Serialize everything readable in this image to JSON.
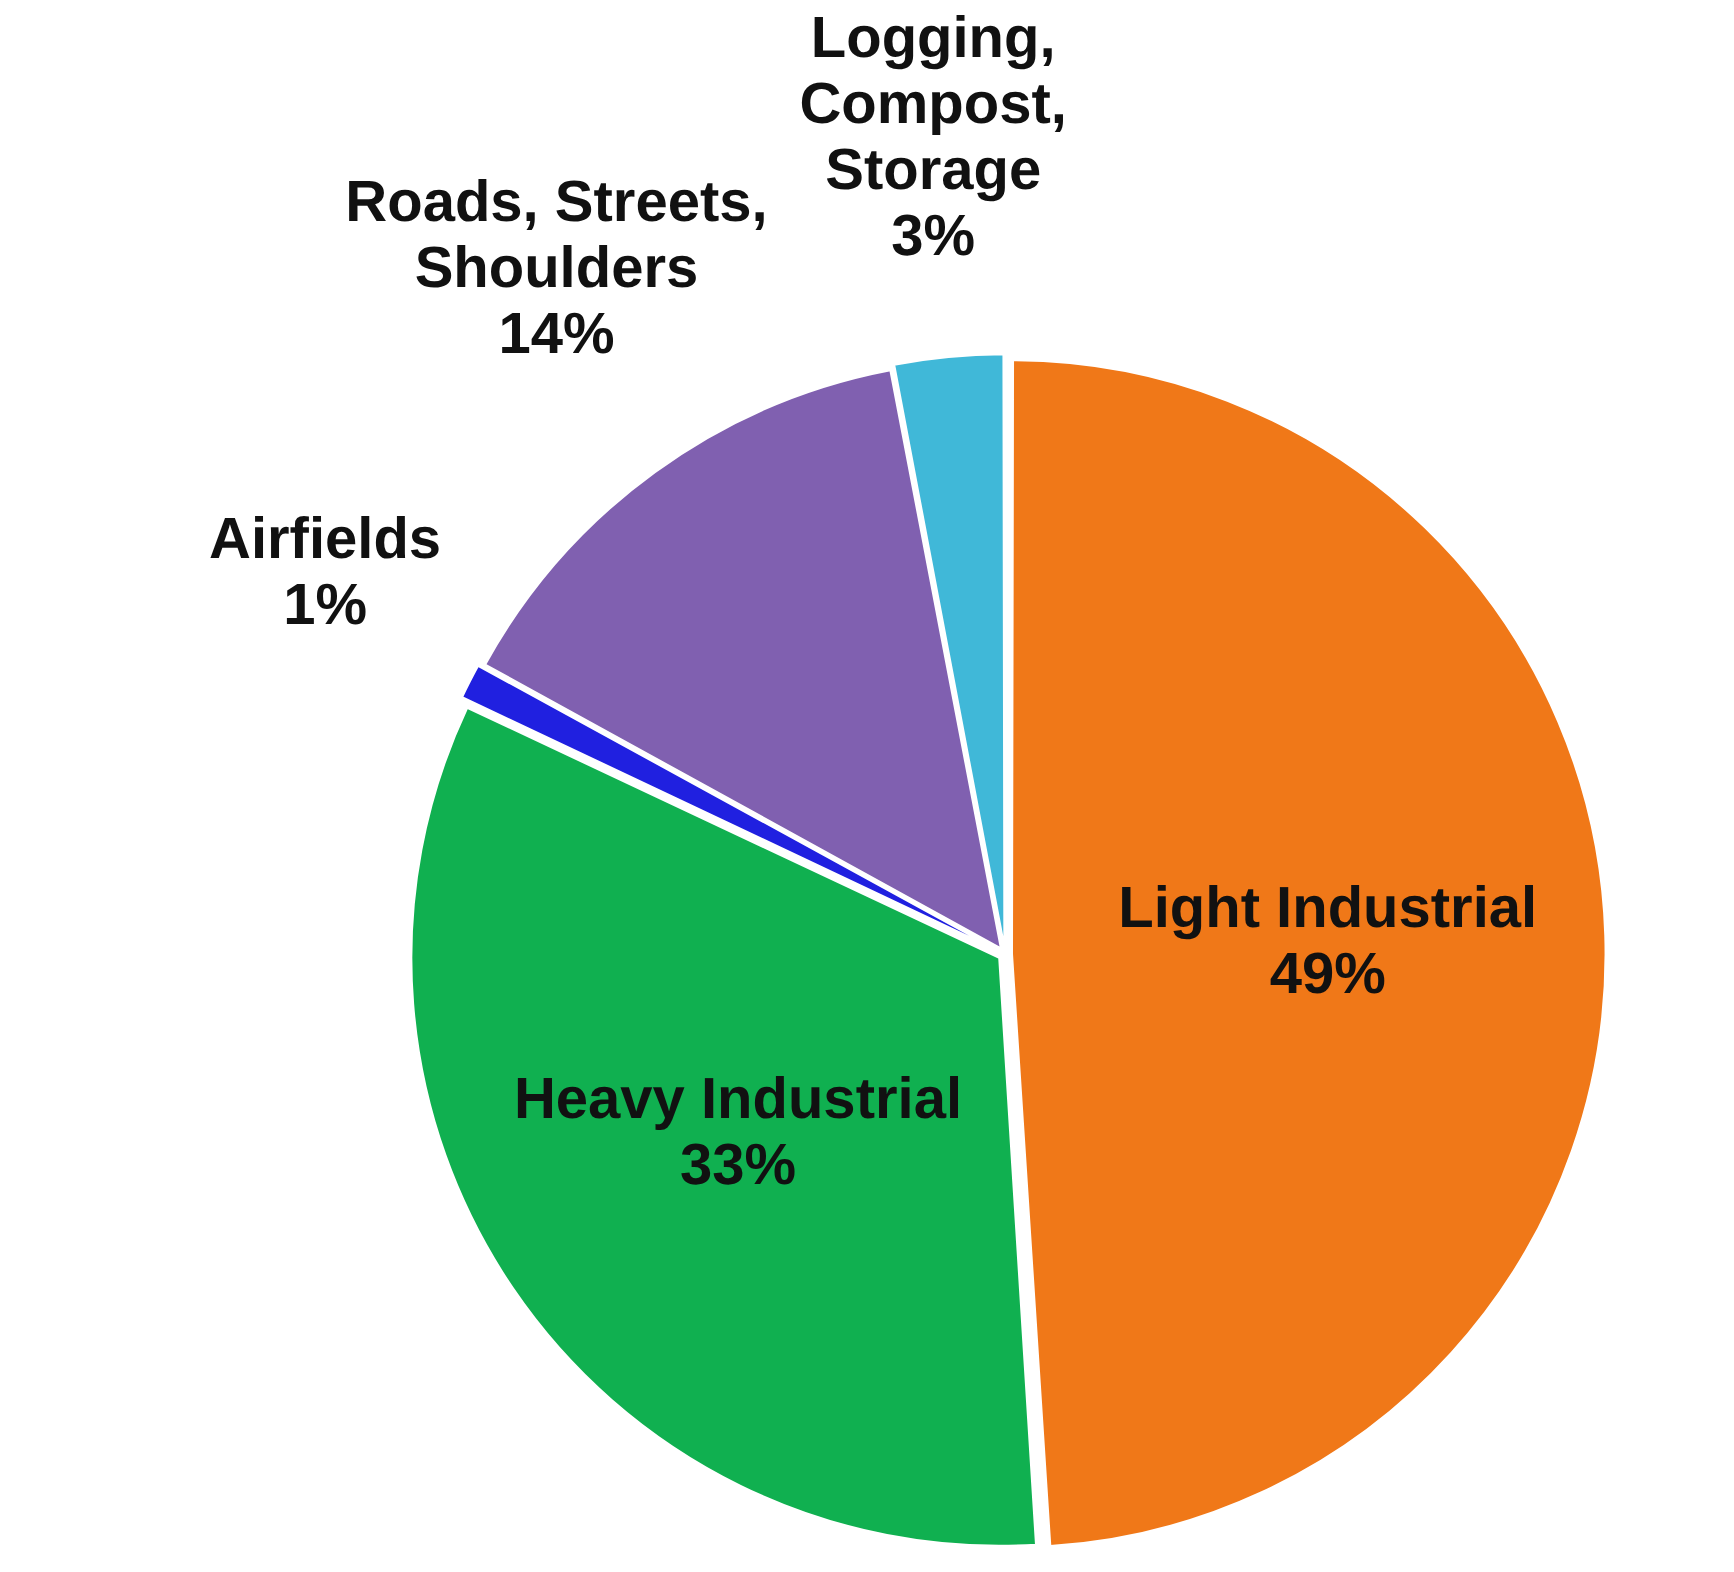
{
  "chart_data": {
    "type": "pie",
    "categories": [
      "Light Industrial",
      "Heavy Industrial",
      "Airfields",
      "Roads, Streets,\nShoulders",
      "Logging,\nCompost,\nStorage"
    ],
    "values": [
      49,
      33,
      1,
      14,
      3
    ],
    "value_labels": [
      "49%",
      "33%",
      "1%",
      "14%",
      "3%"
    ],
    "colors": [
      "#f07818",
      "#10b050",
      "#2020e0",
      "#8060b0",
      "#40b8d8"
    ],
    "legend": false
  }
}
